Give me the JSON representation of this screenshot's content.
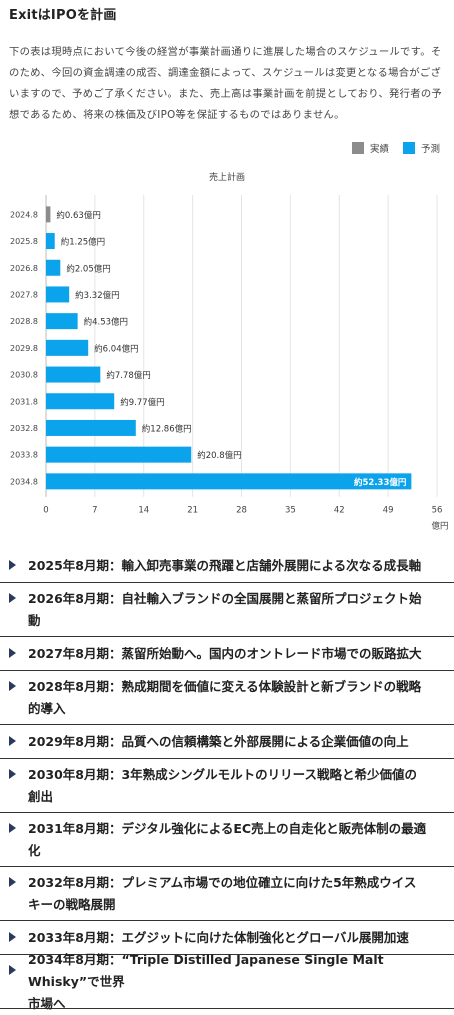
{
  "header": {
    "title": "ExitはIPOを計画",
    "description": "下の表は現時点において今後の経営が事業計画通りに進展した場合のスケジュールです。そのため、今回の資金調達の成否、調達金額によって、スケジュールは変更となる場合がございますので、予めご了承ください。また、売上高は事業計画を前提としており、発行者の予想であるため、将来の株価及びIPO等を保証するものではありません。"
  },
  "legend": {
    "actual": "実績",
    "forecast": "予測"
  },
  "colors": {
    "actual": "#8c8c8c",
    "forecast": "#0aa3ec",
    "grid": "#e4e4e4",
    "arrow": "#2a3a5c"
  },
  "chart_data": {
    "type": "bar",
    "orientation": "horizontal",
    "title": "売上計画",
    "xlabel": "億円",
    "xlim": [
      0,
      56
    ],
    "xticks": [
      "0",
      "7",
      "14",
      "21",
      "28",
      "35",
      "42",
      "49",
      "56"
    ],
    "grid": true,
    "legend_position": "top-right",
    "categories": [
      "2024.8",
      "2025.8",
      "2026.8",
      "2027.8",
      "2028.8",
      "2029.8",
      "2030.8",
      "2031.8",
      "2032.8",
      "2033.8",
      "2034.8"
    ],
    "values": [
      0.63,
      1.25,
      2.05,
      3.32,
      4.53,
      6.04,
      7.78,
      9.77,
      12.86,
      20.8,
      52.33
    ],
    "kinds": [
      "actual",
      "forecast",
      "forecast",
      "forecast",
      "forecast",
      "forecast",
      "forecast",
      "forecast",
      "forecast",
      "forecast",
      "forecast"
    ],
    "labels": [
      "約0.63億円",
      "約1.25億円",
      "約2.05億円",
      "約3.32億円",
      "約4.53億円",
      "約6.04億円",
      "約7.78億円",
      "約9.77億円",
      "約12.86億円",
      "約20.8億円",
      "約52.33億円"
    ]
  },
  "milestones": [
    {
      "lines": [
        "2025年8月期：輸入卸売事業の飛躍と店舗外展開による次なる成長軸"
      ]
    },
    {
      "lines": [
        "2026年8月期：自社輸入ブランドの全国展開と蒸留所プロジェクト始",
        "動"
      ]
    },
    {
      "lines": [
        "2027年8月期：蒸留所始動へ。国内のオントレード市場での販路拡大"
      ]
    },
    {
      "lines": [
        "2028年8月期：熟成期間を価値に変える体験設計と新ブランドの戦略",
        "的導入"
      ]
    },
    {
      "lines": [
        "2029年8月期：品質への信頼構築と外部展開による企業価値の向上"
      ]
    },
    {
      "lines": [
        "2030年8月期：3年熟成シングルモルトのリリース戦略と希少価値の",
        "創出"
      ]
    },
    {
      "lines": [
        "2031年8月期：デジタル強化によるEC売上の自走化と販売体制の最適",
        "化"
      ]
    },
    {
      "lines": [
        "2032年8月期：プレミアム市場での地位確立に向けた5年熟成ウイス",
        "キーの戦略展開"
      ]
    },
    {
      "lines": [
        "2033年8月期：エグジットに向けた体制強化とグローバル展開加速"
      ]
    },
    {
      "lines": [
        "2034年8月期：“Triple Distilled Japanese Single Malt Whisky”で世界",
        "市場へ"
      ]
    }
  ]
}
